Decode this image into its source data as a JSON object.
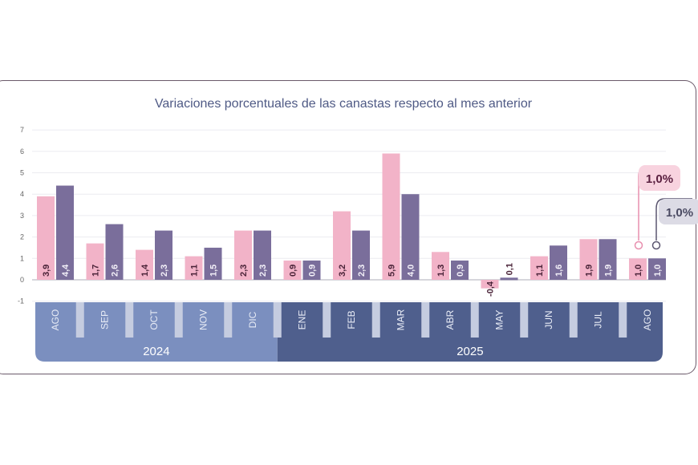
{
  "chart_data": {
    "type": "bar",
    "title": "Variaciones porcentuales de las canastas respecto al mes anterior",
    "xlabel": "",
    "ylabel": "",
    "ylim": [
      -1,
      7
    ],
    "yticks": [
      "-1",
      "0",
      "1",
      "2",
      "3",
      "4",
      "5",
      "6",
      "7"
    ],
    "grid": true,
    "categories": [
      "AGO",
      "SEP",
      "OCT",
      "NOV",
      "DIC",
      "ENE",
      "FEB",
      "MAR",
      "ABR",
      "MAY",
      "JUN",
      "JUL",
      "AGO"
    ],
    "years": [
      {
        "label": "2024",
        "count": 5
      },
      {
        "label": "2025",
        "count": 8
      }
    ],
    "series": [
      {
        "name": "pink series",
        "color": "#f2b3c8",
        "values": [
          3.9,
          1.7,
          1.4,
          1.1,
          2.3,
          0.9,
          3.2,
          5.9,
          1.3,
          -0.4,
          1.1,
          1.9,
          1.0
        ],
        "labels": [
          "3,9",
          "1,7",
          "1,4",
          "1,1",
          "2,3",
          "0,9",
          "3,2",
          "5,9",
          "1,3",
          "-0,4",
          "1,1",
          "1,9",
          "1,0"
        ]
      },
      {
        "name": "purple series",
        "color": "#7a6e9b",
        "values": [
          4.4,
          2.6,
          2.3,
          1.5,
          2.3,
          0.9,
          2.3,
          4.0,
          0.9,
          0.1,
          1.6,
          1.9,
          1.0
        ],
        "labels": [
          "4,4",
          "2,6",
          "2,3",
          "1,5",
          "2,3",
          "0,9",
          "2,3",
          "4,0",
          "0,9",
          "0,1",
          "1,6",
          "1,9",
          "1,0"
        ]
      }
    ],
    "callouts": [
      "1,0%",
      "1,0%"
    ]
  }
}
